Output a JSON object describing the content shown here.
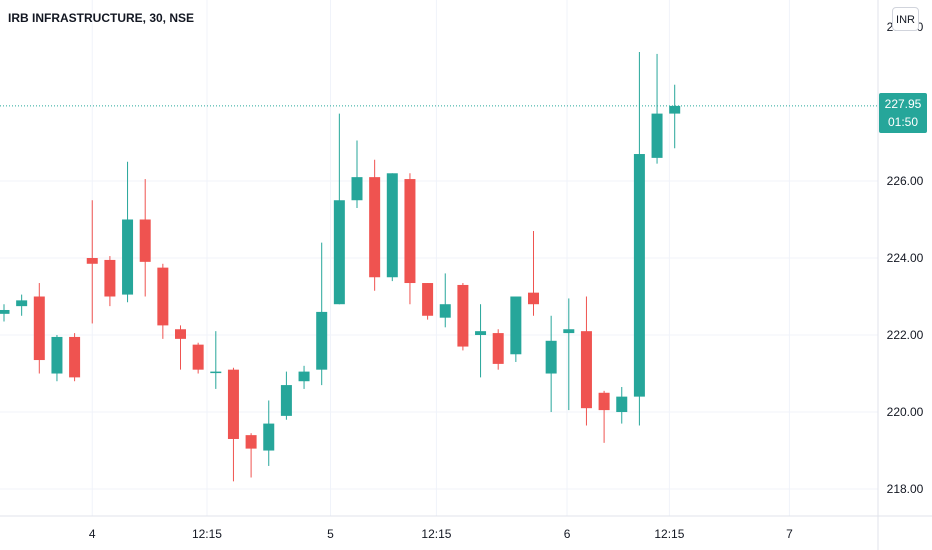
{
  "header": {
    "title": "IRB INFRASTRUCTURE, 30, NSE"
  },
  "currency_button": {
    "label": "INR"
  },
  "current_price": {
    "price": "227.95",
    "countdown": "01:50"
  },
  "colors": {
    "up": "#26a69a",
    "down": "#ef5350",
    "grid": "#f0f3fa",
    "axis_text": "#131722",
    "price_line": "#26a69a"
  },
  "chart_data": {
    "type": "candlestick",
    "title": "IRB INFRASTRUCTURE, 30, NSE",
    "ylim": [
      217.3,
      230.7
    ],
    "y_ticks": [
      "218.00",
      "220.00",
      "222.00",
      "224.00",
      "226.00"
    ],
    "x_ticks": [
      "4",
      "12:15",
      "5",
      "12:15",
      "6",
      "12:15",
      "7"
    ],
    "grid": true,
    "candles": [
      {
        "open": 222.55,
        "close": 222.65,
        "high": 222.8,
        "low": 222.35
      },
      {
        "open": 222.75,
        "close": 222.9,
        "high": 223.05,
        "low": 222.5
      },
      {
        "open": 223.0,
        "close": 221.35,
        "high": 223.35,
        "low": 221.0
      },
      {
        "open": 221.0,
        "close": 221.95,
        "high": 222.0,
        "low": 220.8
      },
      {
        "open": 221.95,
        "close": 220.9,
        "high": 222.05,
        "low": 220.8
      },
      {
        "open": 224.0,
        "close": 223.85,
        "high": 225.5,
        "low": 222.3
      },
      {
        "open": 223.95,
        "close": 223.0,
        "high": 224.05,
        "low": 222.75
      },
      {
        "open": 223.05,
        "close": 225.0,
        "high": 226.5,
        "low": 222.85
      },
      {
        "open": 225.0,
        "close": 223.9,
        "high": 226.05,
        "low": 223.0
      },
      {
        "open": 223.75,
        "close": 222.25,
        "high": 223.85,
        "low": 221.9
      },
      {
        "open": 222.15,
        "close": 221.9,
        "high": 222.25,
        "low": 221.1
      },
      {
        "open": 221.75,
        "close": 221.1,
        "high": 221.8,
        "low": 221.0
      },
      {
        "open": 221.05,
        "close": 221.05,
        "high": 222.1,
        "low": 220.6
      },
      {
        "open": 221.1,
        "close": 219.3,
        "high": 221.15,
        "low": 218.2
      },
      {
        "open": 219.4,
        "close": 219.05,
        "high": 219.45,
        "low": 218.3
      },
      {
        "open": 219.0,
        "close": 219.7,
        "high": 220.3,
        "low": 218.6
      },
      {
        "open": 219.9,
        "close": 220.7,
        "high": 221.05,
        "low": 219.8
      },
      {
        "open": 220.8,
        "close": 221.05,
        "high": 221.2,
        "low": 220.6
      },
      {
        "open": 221.1,
        "close": 222.6,
        "high": 224.4,
        "low": 220.7
      },
      {
        "open": 222.8,
        "close": 225.5,
        "high": 227.75,
        "low": 222.8
      },
      {
        "open": 225.5,
        "close": 226.1,
        "high": 227.05,
        "low": 225.3
      },
      {
        "open": 226.1,
        "close": 223.5,
        "high": 226.55,
        "low": 223.15
      },
      {
        "open": 223.5,
        "close": 226.2,
        "high": 226.2,
        "low": 223.4
      },
      {
        "open": 226.05,
        "close": 223.35,
        "high": 226.2,
        "low": 222.8
      },
      {
        "open": 223.35,
        "close": 222.5,
        "high": 223.35,
        "low": 222.4
      },
      {
        "open": 222.45,
        "close": 222.8,
        "high": 223.6,
        "low": 222.2
      },
      {
        "open": 223.3,
        "close": 221.7,
        "high": 223.35,
        "low": 221.6
      },
      {
        "open": 222.0,
        "close": 222.1,
        "high": 222.8,
        "low": 220.9
      },
      {
        "open": 222.05,
        "close": 221.25,
        "high": 222.15,
        "low": 221.1
      },
      {
        "open": 221.5,
        "close": 223.0,
        "high": 223.0,
        "low": 221.3
      },
      {
        "open": 223.1,
        "close": 222.8,
        "high": 224.7,
        "low": 222.5
      },
      {
        "open": 221.0,
        "close": 221.85,
        "high": 222.5,
        "low": 220.0
      },
      {
        "open": 222.05,
        "close": 222.15,
        "high": 222.95,
        "low": 220.05
      },
      {
        "open": 222.1,
        "close": 220.1,
        "high": 223.0,
        "low": 219.65
      },
      {
        "open": 220.5,
        "close": 220.05,
        "high": 220.55,
        "low": 219.2
      },
      {
        "open": 220.0,
        "close": 220.4,
        "high": 220.65,
        "low": 219.7
      },
      {
        "open": 220.4,
        "close": 226.7,
        "high": 229.35,
        "low": 219.65
      },
      {
        "open": 226.6,
        "close": 227.75,
        "high": 229.3,
        "low": 226.45
      },
      {
        "open": 227.75,
        "close": 227.95,
        "high": 228.5,
        "low": 226.85
      }
    ],
    "current_price": 227.95
  }
}
